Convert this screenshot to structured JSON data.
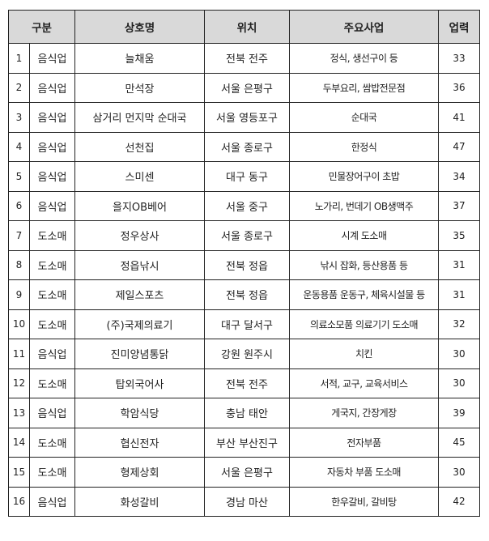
{
  "headers": {
    "category": "구분",
    "name": "상호명",
    "location": "위치",
    "business": "주요사업",
    "years": "업력"
  },
  "header_bg": "#d9d9d9",
  "rows": [
    {
      "no": "1",
      "category": "음식업",
      "name": "늘채움",
      "location": "전북 전주",
      "business": "정식, 생선구이 등",
      "years": "33"
    },
    {
      "no": "2",
      "category": "음식업",
      "name": "만석장",
      "location": "서울 은평구",
      "business": "두부요리, 쌈밥전문점",
      "years": "36"
    },
    {
      "no": "3",
      "category": "음식업",
      "name": "삼거리 먼지막 순대국",
      "location": "서울 영등포구",
      "business": "순대국",
      "years": "41"
    },
    {
      "no": "4",
      "category": "음식업",
      "name": "선천집",
      "location": "서울 종로구",
      "business": "한정식",
      "years": "47"
    },
    {
      "no": "5",
      "category": "음식업",
      "name": "스미센",
      "location": "대구 동구",
      "business": "민물장어구이 초밥",
      "years": "34"
    },
    {
      "no": "6",
      "category": "음식업",
      "name": "을지OB베어",
      "location": "서울 중구",
      "business": "노가리, 번데기 OB생맥주",
      "years": "37"
    },
    {
      "no": "7",
      "category": "도소매",
      "name": "정우상사",
      "location": "서울 종로구",
      "business": "시계 도소매",
      "years": "35"
    },
    {
      "no": "8",
      "category": "도소매",
      "name": "정읍낚시",
      "location": "전북 정읍",
      "business": "낚시 잡화, 등산용품 등",
      "years": "31"
    },
    {
      "no": "9",
      "category": "도소매",
      "name": "제일스포츠",
      "location": "전북 정읍",
      "business": "운동용품 운동구, 체육시설물 등",
      "years": "31"
    },
    {
      "no": "10",
      "category": "도소매",
      "name": "(주)국제의료기",
      "location": "대구 달서구",
      "business": "의료소모품 의료기기 도소매",
      "years": "32"
    },
    {
      "no": "11",
      "category": "음식업",
      "name": "진미양념통닭",
      "location": "강원 원주시",
      "business": "치킨",
      "years": "30"
    },
    {
      "no": "12",
      "category": "도소매",
      "name": "탑외국어사",
      "location": "전북 전주",
      "business": "서적, 교구, 교육서비스",
      "years": "30"
    },
    {
      "no": "13",
      "category": "음식업",
      "name": "학암식당",
      "location": "충남 태안",
      "business": "게국지, 간장게장",
      "years": "39"
    },
    {
      "no": "14",
      "category": "도소매",
      "name": "협신전자",
      "location": "부산 부산진구",
      "business": "전자부품",
      "years": "45"
    },
    {
      "no": "15",
      "category": "도소매",
      "name": "형제상회",
      "location": "서울 은평구",
      "business": "자동차 부품 도소매",
      "years": "30"
    },
    {
      "no": "16",
      "category": "음식업",
      "name": "화성갈비",
      "location": "경남 마산",
      "business": "한우갈비, 갈비탕",
      "years": "42"
    }
  ]
}
